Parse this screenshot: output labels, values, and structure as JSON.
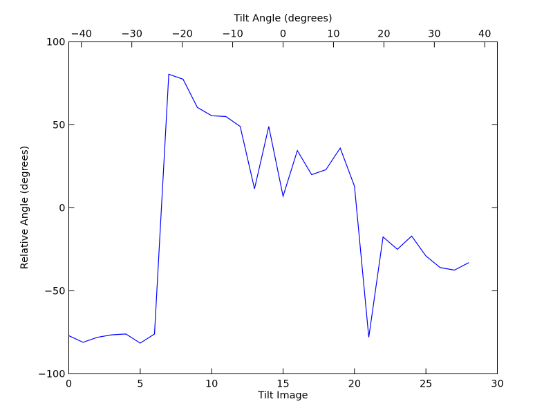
{
  "chart_data": {
    "type": "line",
    "title": "",
    "xlabel": "Tilt Image",
    "ylabel": "Relative Angle (degrees)",
    "top_xlabel": "Tilt Angle (degrees)",
    "xlim": [
      0,
      30
    ],
    "ylim": [
      -100,
      100
    ],
    "top_xlim": [
      -42.5,
      42.5
    ],
    "xticks": [
      0,
      5,
      10,
      15,
      20,
      25,
      30
    ],
    "yticks": [
      -100,
      -50,
      0,
      50,
      100
    ],
    "top_xticks": [
      -40,
      -30,
      -20,
      -10,
      0,
      10,
      20,
      30,
      40
    ],
    "tick_labels": {
      "x": [
        "0",
        "5",
        "10",
        "15",
        "20",
        "25",
        "30"
      ],
      "y": [
        "−100",
        "−50",
        "0",
        "50",
        "100"
      ],
      "top_x": [
        "−40",
        "−30",
        "−20",
        "−10",
        "0",
        "10",
        "20",
        "30",
        "40"
      ]
    },
    "grid": false,
    "legend": "none",
    "line_color": "#0000ff",
    "series": [
      {
        "x": [
          0,
          1,
          2,
          3,
          4,
          5,
          6,
          7,
          8,
          9,
          10,
          11,
          12,
          13,
          14,
          15,
          16,
          17,
          18,
          19,
          20,
          21,
          22,
          23,
          24,
          25,
          26,
          27,
          28
        ],
        "values": [
          -77,
          -81,
          -78,
          -76.5,
          -76,
          -81.5,
          -76,
          80.5,
          77.5,
          60.5,
          55.5,
          55,
          49,
          11.5,
          49,
          7,
          34.5,
          20,
          23,
          36,
          13,
          -78,
          -17.5,
          -25,
          -17,
          -29,
          -36,
          -37.5,
          -33
        ]
      }
    ]
  }
}
